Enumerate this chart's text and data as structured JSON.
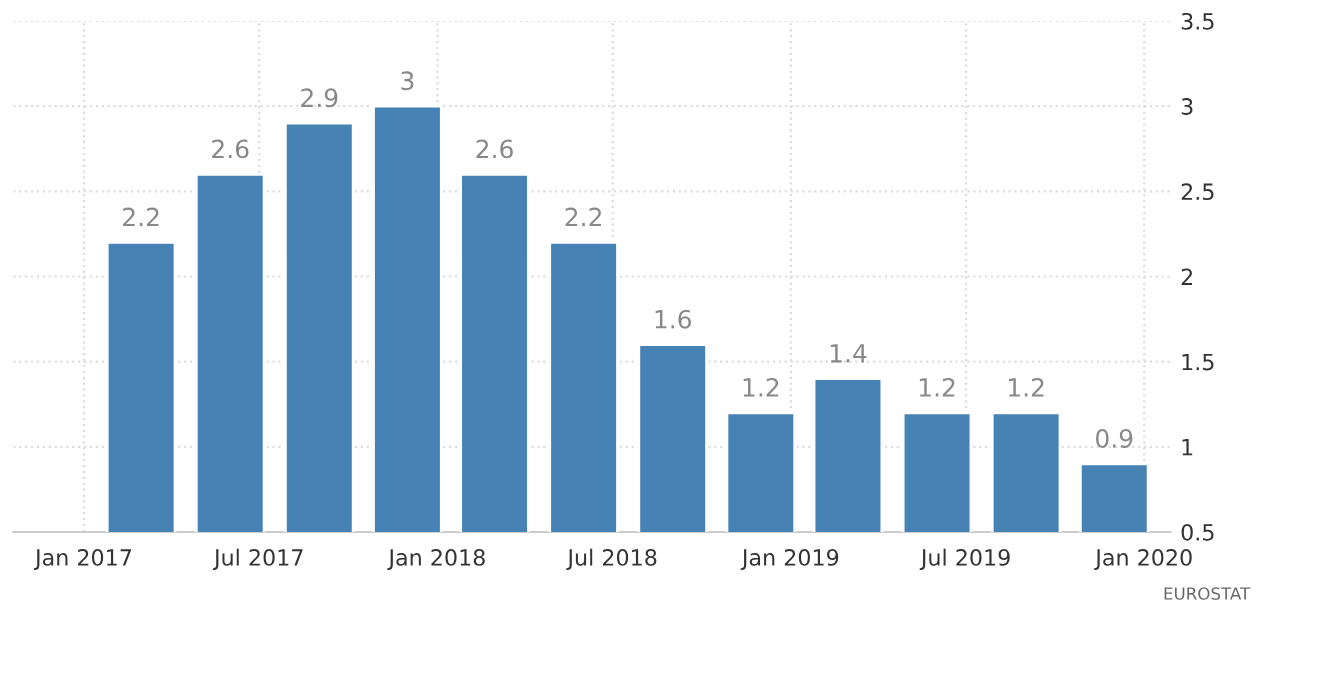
{
  "chart_data": {
    "type": "bar",
    "x": [
      "2017-03",
      "2017-06",
      "2017-09",
      "2017-12",
      "2018-03",
      "2018-06",
      "2018-09",
      "2018-12",
      "2019-03",
      "2019-06",
      "2019-09",
      "2019-12"
    ],
    "series": [
      {
        "color": "#4682b4",
        "values": [
          2.2,
          2.6,
          2.9,
          3,
          2.6,
          2.2,
          1.6,
          1.2,
          1.4,
          1.2,
          1.2,
          0.9
        ]
      }
    ],
    "data_labels": true,
    "xlim": [
      "2016-10-20",
      "2020-01-28"
    ],
    "xticks": [
      {
        "value": "2017-01",
        "label": "Jan 2017"
      },
      {
        "value": "2017-07",
        "label": "Jul 2017"
      },
      {
        "value": "2018-01",
        "label": "Jan 2018"
      },
      {
        "value": "2018-07",
        "label": "Jul 2018"
      },
      {
        "value": "2019-01",
        "label": "Jan 2019"
      },
      {
        "value": "2019-07",
        "label": "Jul 2019"
      },
      {
        "value": "2020-01",
        "label": "Jan 2020"
      }
    ],
    "ylim": [
      0.5,
      3.5
    ],
    "yticks": [
      0.5,
      1,
      1.5,
      2,
      2.5,
      3,
      3.5
    ],
    "grid": true,
    "annotations": [
      "EUROSTAT"
    ]
  }
}
